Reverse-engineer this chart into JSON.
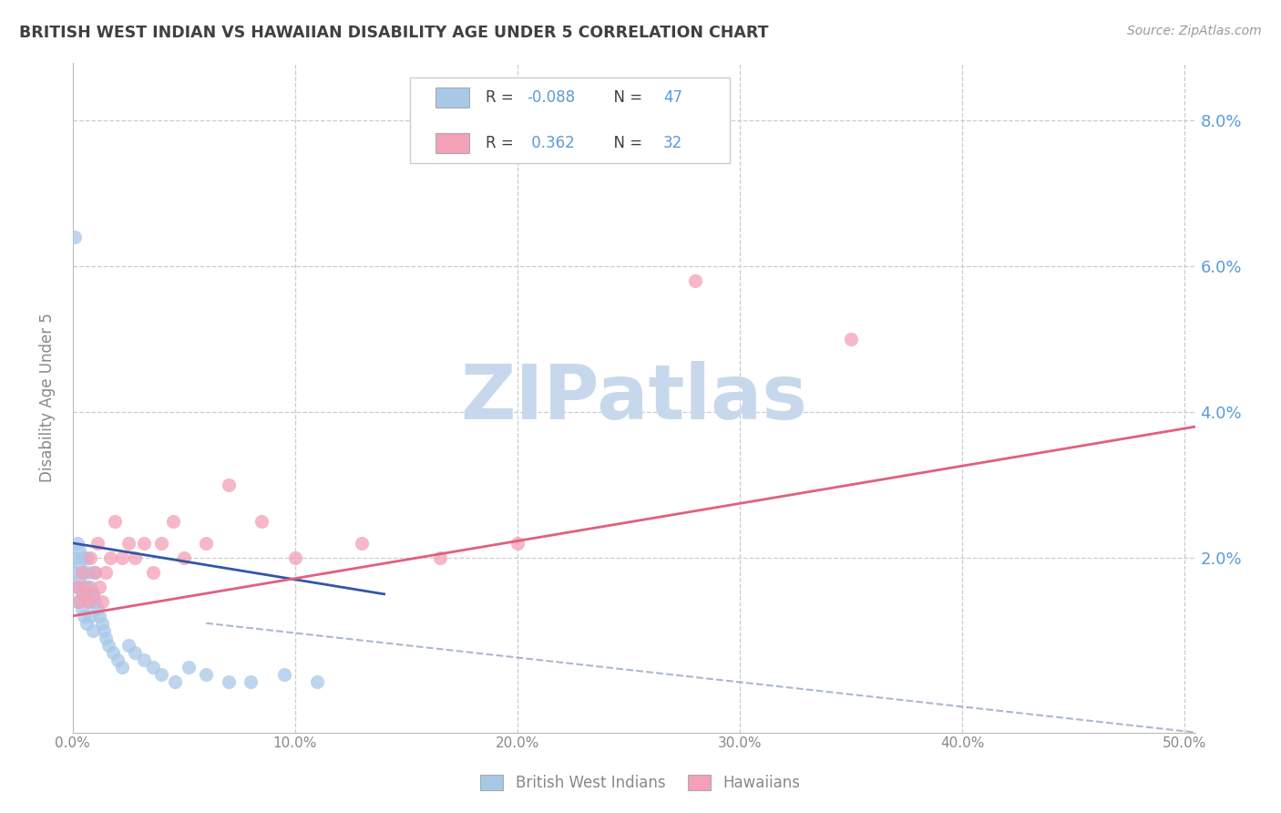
{
  "title": "BRITISH WEST INDIAN VS HAWAIIAN DISABILITY AGE UNDER 5 CORRELATION CHART",
  "source": "Source: ZipAtlas.com",
  "ylabel": "Disability Age Under 5",
  "xlim": [
    0,
    0.505
  ],
  "ylim": [
    -0.004,
    0.088
  ],
  "xticks": [
    0.0,
    0.1,
    0.2,
    0.3,
    0.4,
    0.5
  ],
  "yticks": [
    0.0,
    0.02,
    0.04,
    0.06,
    0.08
  ],
  "xtick_labels": [
    "0.0%",
    "10.0%",
    "20.0%",
    "30.0%",
    "40.0%",
    "50.0%"
  ],
  "ytick_labels_right": [
    "",
    "2.0%",
    "4.0%",
    "6.0%",
    "8.0%"
  ],
  "color_bwi": "#a8c8e8",
  "color_hawaiian": "#f4a0b8",
  "color_bwi_line": "#3355aa",
  "color_hawaiian_line": "#e06080",
  "color_dashed": "#8899bb",
  "watermark_color": "#c8d8ec",
  "title_color": "#404040",
  "axis_label_color": "#5b9bd5",
  "tick_color": "#888888",
  "legend_text_color": "#404040",
  "legend_value_color": "#5b9bd5",
  "bwi_x": [
    0.001,
    0.001,
    0.002,
    0.002,
    0.002,
    0.003,
    0.003,
    0.003,
    0.004,
    0.004,
    0.004,
    0.005,
    0.005,
    0.005,
    0.006,
    0.006,
    0.006,
    0.007,
    0.007,
    0.008,
    0.008,
    0.009,
    0.009,
    0.01,
    0.01,
    0.011,
    0.012,
    0.013,
    0.014,
    0.015,
    0.016,
    0.018,
    0.02,
    0.022,
    0.025,
    0.028,
    0.032,
    0.036,
    0.04,
    0.046,
    0.052,
    0.06,
    0.07,
    0.08,
    0.095,
    0.11,
    0.001
  ],
  "bwi_y": [
    0.02,
    0.018,
    0.016,
    0.022,
    0.014,
    0.019,
    0.017,
    0.021,
    0.015,
    0.02,
    0.013,
    0.018,
    0.016,
    0.012,
    0.02,
    0.015,
    0.011,
    0.018,
    0.014,
    0.016,
    0.012,
    0.015,
    0.01,
    0.014,
    0.018,
    0.013,
    0.012,
    0.011,
    0.01,
    0.009,
    0.008,
    0.007,
    0.006,
    0.005,
    0.008,
    0.007,
    0.006,
    0.005,
    0.004,
    0.003,
    0.005,
    0.004,
    0.003,
    0.003,
    0.004,
    0.003,
    0.064
  ],
  "hawaiian_x": [
    0.002,
    0.003,
    0.004,
    0.005,
    0.006,
    0.007,
    0.008,
    0.009,
    0.01,
    0.011,
    0.012,
    0.013,
    0.015,
    0.017,
    0.019,
    0.022,
    0.025,
    0.028,
    0.032,
    0.036,
    0.04,
    0.045,
    0.05,
    0.06,
    0.07,
    0.085,
    0.1,
    0.13,
    0.165,
    0.2,
    0.28,
    0.35
  ],
  "hawaiian_y": [
    0.016,
    0.014,
    0.018,
    0.015,
    0.016,
    0.014,
    0.02,
    0.015,
    0.018,
    0.022,
    0.016,
    0.014,
    0.018,
    0.02,
    0.025,
    0.02,
    0.022,
    0.02,
    0.022,
    0.018,
    0.022,
    0.025,
    0.02,
    0.022,
    0.03,
    0.025,
    0.02,
    0.022,
    0.02,
    0.022,
    0.058,
    0.05
  ],
  "bwi_line_x0": 0.0,
  "bwi_line_x1": 0.14,
  "bwi_line_y0": 0.022,
  "bwi_line_y1": 0.015,
  "haw_line_x0": 0.0,
  "haw_line_x1": 0.505,
  "haw_line_y0": 0.012,
  "haw_line_y1": 0.038,
  "dash_line_x0": 0.06,
  "dash_line_x1": 0.505,
  "dash_line_y0": 0.011,
  "dash_line_y1": -0.004
}
